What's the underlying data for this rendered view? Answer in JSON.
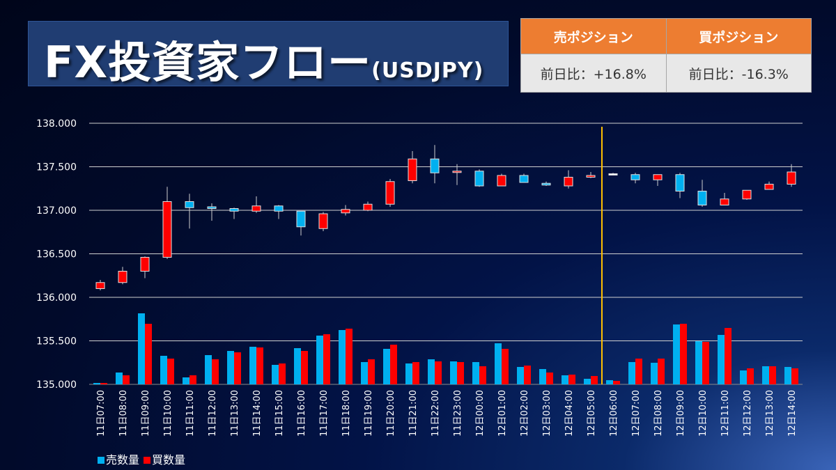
{
  "header": {
    "title": "FX投資家フロー",
    "pair": "(USDJPY)",
    "sell_position_label": "売ポジション",
    "buy_position_label": "買ポジション",
    "sell_change": "前日比：+16.8%",
    "buy_change": "前日比：-16.3%"
  },
  "colors": {
    "up": "#ff0000",
    "down": "#00b0f0",
    "sell": "#00b0f0",
    "buy": "#ff0000",
    "divider": "#ffc000",
    "header": "#ed7d31"
  },
  "chart_data": {
    "type": "candlestick+bar",
    "ylabel": "",
    "ylim": [
      135.0,
      138.0
    ],
    "yticks": [
      "135.000",
      "135.500",
      "136.000",
      "136.500",
      "137.000",
      "137.500",
      "138.000"
    ],
    "ytick_values": [
      135.0,
      135.5,
      136.0,
      136.5,
      137.0,
      137.5,
      138.0
    ],
    "grid": true,
    "divider_after_category": "12日05:00",
    "legend": {
      "position": "bottom-left",
      "entries": [
        "売数量",
        "買数量"
      ]
    },
    "categories": [
      "11日07:00",
      "11日08:00",
      "11日09:00",
      "11日10:00",
      "11日11:00",
      "11日12:00",
      "11日13:00",
      "11日14:00",
      "11日15:00",
      "11日16:00",
      "11日17:00",
      "11日18:00",
      "11日19:00",
      "11日20:00",
      "11日21:00",
      "11日22:00",
      "11日23:00",
      "12日00:00",
      "12日01:00",
      "12日02:00",
      "12日03:00",
      "12日04:00",
      "12日05:00",
      "12日06:00",
      "12日07:00",
      "12日08:00",
      "12日09:00",
      "12日10:00",
      "12日11:00",
      "12日12:00",
      "12日13:00",
      "12日14:00"
    ],
    "ohlc": [
      [
        136.1,
        136.2,
        136.08,
        136.17
      ],
      [
        136.17,
        136.35,
        136.15,
        136.3
      ],
      [
        136.3,
        136.47,
        136.22,
        136.46
      ],
      [
        136.46,
        137.27,
        136.44,
        137.1
      ],
      [
        137.1,
        137.19,
        136.79,
        137.03
      ],
      [
        137.04,
        137.08,
        136.88,
        137.02
      ],
      [
        137.02,
        137.03,
        136.9,
        136.99
      ],
      [
        136.99,
        137.16,
        136.97,
        137.05
      ],
      [
        137.05,
        137.06,
        136.9,
        136.99
      ],
      [
        136.99,
        136.99,
        136.71,
        136.81
      ],
      [
        136.79,
        136.98,
        136.76,
        136.96
      ],
      [
        136.97,
        137.06,
        136.94,
        137.01
      ],
      [
        137.0,
        137.1,
        136.99,
        137.07
      ],
      [
        137.07,
        137.36,
        137.04,
        137.33
      ],
      [
        137.34,
        137.68,
        137.31,
        137.59
      ],
      [
        137.59,
        137.75,
        137.31,
        137.43
      ],
      [
        137.44,
        137.53,
        137.29,
        137.45
      ],
      [
        137.45,
        137.47,
        137.27,
        137.28
      ],
      [
        137.28,
        137.42,
        137.28,
        137.4
      ],
      [
        137.4,
        137.42,
        137.32,
        137.32
      ],
      [
        137.31,
        137.33,
        137.28,
        137.29
      ],
      [
        137.28,
        137.46,
        137.25,
        137.38
      ],
      [
        137.38,
        137.44,
        137.37,
        137.4
      ],
      [
        137.42,
        137.43,
        137.41,
        137.42
      ],
      [
        137.41,
        137.43,
        137.31,
        137.35
      ],
      [
        137.35,
        137.41,
        137.28,
        137.41
      ],
      [
        137.41,
        137.43,
        137.14,
        137.22
      ],
      [
        137.22,
        137.35,
        137.04,
        137.06
      ],
      [
        137.06,
        137.2,
        137.06,
        137.13
      ],
      [
        137.13,
        137.23,
        137.12,
        137.23
      ],
      [
        137.24,
        137.33,
        137.24,
        137.3
      ],
      [
        137.3,
        137.53,
        137.27,
        137.44
      ]
    ],
    "series": [
      {
        "name": "売数量",
        "values": [
          2,
          17,
          102,
          41,
          10,
          42,
          48,
          54,
          28,
          52,
          70,
          78,
          32,
          51,
          30,
          36,
          33,
          32,
          59,
          25,
          22,
          13,
          8,
          6,
          32,
          31,
          86,
          62,
          71,
          20,
          26,
          25
        ]
      },
      {
        "name": "買数量",
        "values": [
          2,
          13,
          87,
          37,
          13,
          36,
          46,
          53,
          30,
          48,
          72,
          80,
          36,
          57,
          32,
          33,
          32,
          26,
          51,
          27,
          17,
          14,
          12,
          5,
          37,
          37,
          87,
          61,
          81,
          23,
          26,
          23
        ]
      }
    ]
  }
}
